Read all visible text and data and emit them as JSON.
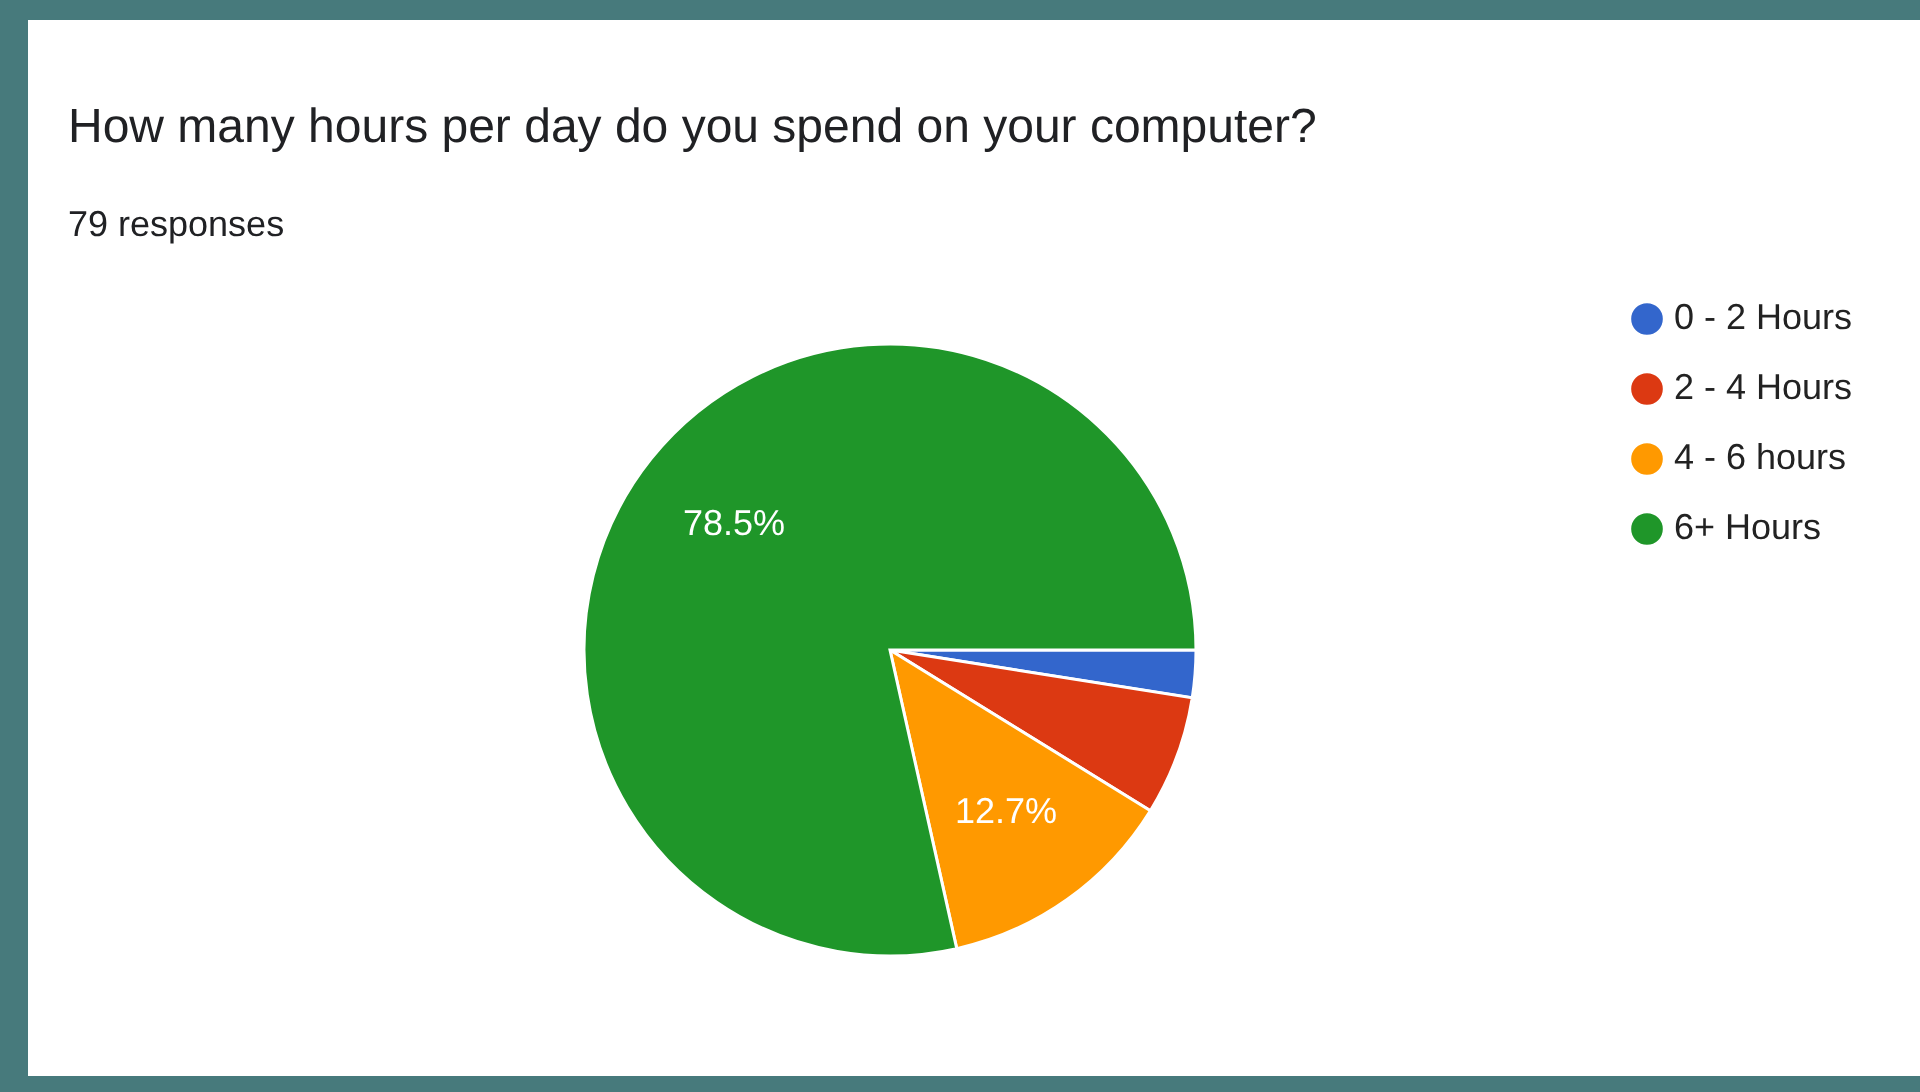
{
  "chart_data": {
    "type": "pie",
    "title": "How many hours per day do you spend on your computer?",
    "subtitle": "79 responses",
    "categories": [
      "0 - 2 Hours",
      "2 - 4 Hours",
      "4 - 6 hours",
      "6+ Hours"
    ],
    "values": [
      2.5,
      6.3,
      12.7,
      78.5
    ],
    "colors": [
      "#3366cc",
      "#dc3912",
      "#ff9900",
      "#1f9629"
    ],
    "value_labels": [
      null,
      null,
      "12.7%",
      "78.5%"
    ],
    "legend": "right"
  }
}
